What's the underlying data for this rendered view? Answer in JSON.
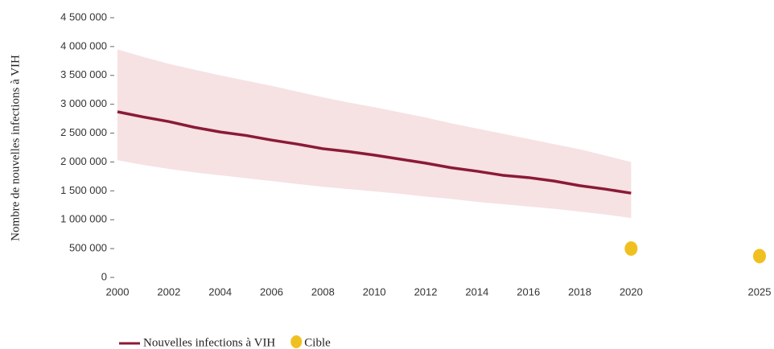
{
  "chart_data": {
    "type": "line",
    "ylabel": "Nombre de nouvelles infections à VIH",
    "x": [
      2000,
      2001,
      2002,
      2003,
      2004,
      2005,
      2006,
      2007,
      2008,
      2009,
      2010,
      2011,
      2012,
      2013,
      2014,
      2015,
      2016,
      2017,
      2018,
      2019,
      2020
    ],
    "xlim": [
      2000,
      2025
    ],
    "xticks": [
      2000,
      2002,
      2004,
      2006,
      2008,
      2010,
      2012,
      2014,
      2016,
      2018,
      2020,
      2025
    ],
    "ylim": [
      0,
      4500000
    ],
    "yticks": [
      0,
      {
        "value": 500000,
        "label": "500 000"
      },
      {
        "value": 1000000,
        "label": "1 000 000"
      },
      {
        "value": 1500000,
        "label": "1 500 000"
      },
      {
        "value": 2000000,
        "label": "2 000 000"
      },
      {
        "value": 2500000,
        "label": "2 500 000"
      },
      {
        "value": 3000000,
        "label": "3 000 000"
      },
      {
        "value": 3500000,
        "label": "3 500 000"
      },
      {
        "value": 4000000,
        "label": "4 000 000"
      },
      {
        "value": 4500000,
        "label": "4 500 000"
      }
    ],
    "series": [
      {
        "name": "Nouvelles infections à VIH",
        "color": "#8b1a35",
        "band_color": "#f6e1e3",
        "values": [
          2870000,
          2780000,
          2700000,
          2600000,
          2520000,
          2460000,
          2380000,
          2310000,
          2230000,
          2180000,
          2120000,
          2050000,
          1980000,
          1900000,
          1840000,
          1770000,
          1730000,
          1670000,
          1590000,
          1530000,
          1460000
        ],
        "upper": [
          3950000,
          3820000,
          3700000,
          3600000,
          3500000,
          3410000,
          3320000,
          3220000,
          3120000,
          3030000,
          2950000,
          2860000,
          2770000,
          2670000,
          2580000,
          2490000,
          2400000,
          2310000,
          2220000,
          2110000,
          2000000
        ],
        "lower": [
          2030000,
          1950000,
          1880000,
          1820000,
          1770000,
          1720000,
          1670000,
          1620000,
          1570000,
          1530000,
          1490000,
          1450000,
          1400000,
          1360000,
          1310000,
          1270000,
          1230000,
          1190000,
          1140000,
          1090000,
          1030000
        ]
      },
      {
        "name": "Cible",
        "type": "scatter",
        "color": "#f0c020",
        "x": [
          2020,
          2025
        ],
        "values": [
          500000,
          370000
        ]
      }
    ]
  }
}
